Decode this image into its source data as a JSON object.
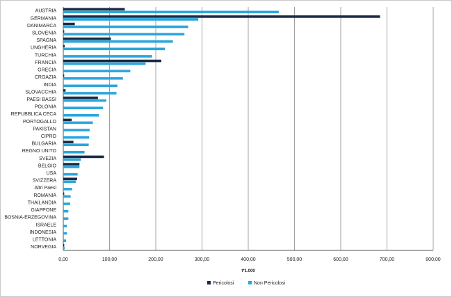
{
  "chart_data": {
    "type": "bar",
    "orientation": "horizontal",
    "xlabel": "t*1.000",
    "xlim": [
      0,
      800
    ],
    "xticks": [
      "0,00",
      "100,00",
      "200,00",
      "300,00",
      "400,00",
      "500,00",
      "600,00",
      "700,00",
      "800,00"
    ],
    "grid": true,
    "legend_position": "bottom",
    "categories": [
      "AUSTRIA",
      "GERMANIA",
      "DANIMARCA",
      "SLOVENIA",
      "SPAGNA",
      "UNGHERIA",
      "TURCHIA",
      "FRANCIA",
      "GRECIA",
      "CROAZIA",
      "INDIA",
      "SLOVACCHIA",
      "PAESI BASSI",
      "POLONIA",
      "REPUBBLICA CECA",
      "PORTOGALLO",
      "PAKISTAN",
      "CIPRO",
      "BULGARIA",
      "REGNO UNITO",
      "SVEZIA",
      "BELGIO",
      "USA",
      "SVIZZERA",
      "Altri Paesi",
      "ROMANIA",
      "THAILANDIA",
      "GIAPPONE",
      "BOSNIA-ERZEGOVINA",
      "ISRAELE",
      "INDONESIA",
      "LETTONIA",
      "NORVEGIA"
    ],
    "series": [
      {
        "name": "Pericolosi",
        "color": "#1b2a44",
        "values": [
          133,
          685,
          25,
          2,
          103,
          3,
          0,
          212,
          0,
          2,
          0,
          5,
          75,
          0,
          0,
          18,
          0,
          0,
          22,
          0,
          88,
          35,
          0,
          30,
          0,
          2,
          0,
          0,
          0,
          0,
          0,
          0,
          2
        ]
      },
      {
        "name": "Non Pericolosi",
        "color": "#2aa6dc",
        "values": [
          466,
          292,
          270,
          262,
          237,
          220,
          192,
          178,
          145,
          129,
          117,
          115,
          93,
          86,
          77,
          64,
          57,
          56,
          55,
          46,
          38,
          35,
          31,
          27,
          19,
          16,
          15,
          11,
          11,
          8,
          8,
          6,
          3
        ]
      }
    ]
  }
}
